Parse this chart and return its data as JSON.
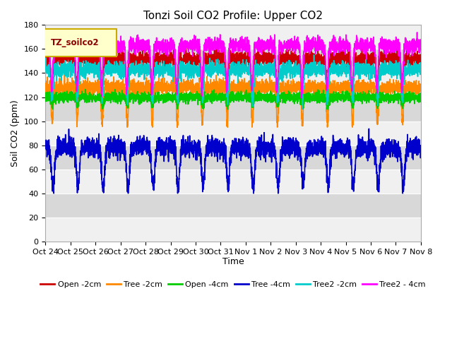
{
  "title": "Tonzi Soil CO2 Profile: Upper CO2",
  "xlabel": "Time",
  "ylabel": "Soil CO2 (ppm)",
  "ylim": [
    0,
    180
  ],
  "yticks": [
    0,
    20,
    40,
    60,
    80,
    100,
    120,
    140,
    160,
    180
  ],
  "legend_label": "TZ_soilco2",
  "series": {
    "Open -2cm": {
      "color": "#cc0000",
      "lw": 1.2
    },
    "Tree -2cm": {
      "color": "#ff8800",
      "lw": 1.2
    },
    "Open -4cm": {
      "color": "#00cc00",
      "lw": 1.2
    },
    "Tree -4cm": {
      "color": "#0000cc",
      "lw": 1.2
    },
    "Tree2 -2cm": {
      "color": "#00cccc",
      "lw": 1.2
    },
    "Tree2 - 4cm": {
      "color": "#ff00ff",
      "lw": 1.2
    }
  },
  "x_tick_labels": [
    "Oct 24",
    "Oct 25",
    "Oct 26",
    "Oct 27",
    "Oct 28",
    "Oct 29",
    "Oct 30",
    "Oct 31",
    "Nov 1",
    "Nov 2",
    "Nov 3",
    "Nov 4",
    "Nov 5",
    "Nov 6",
    "Nov 7",
    "Nov 8"
  ],
  "n_points": 3360,
  "background_color": "#ffffff",
  "plot_bg_color_light": "#f0f0f0",
  "plot_bg_color_dark": "#d8d8d8",
  "grid_color": "#ffffff",
  "title_fontsize": 11,
  "axis_fontsize": 9,
  "tick_fontsize": 8,
  "legend_box_color": "#ffffcc",
  "legend_box_edge": "#ccaa00"
}
